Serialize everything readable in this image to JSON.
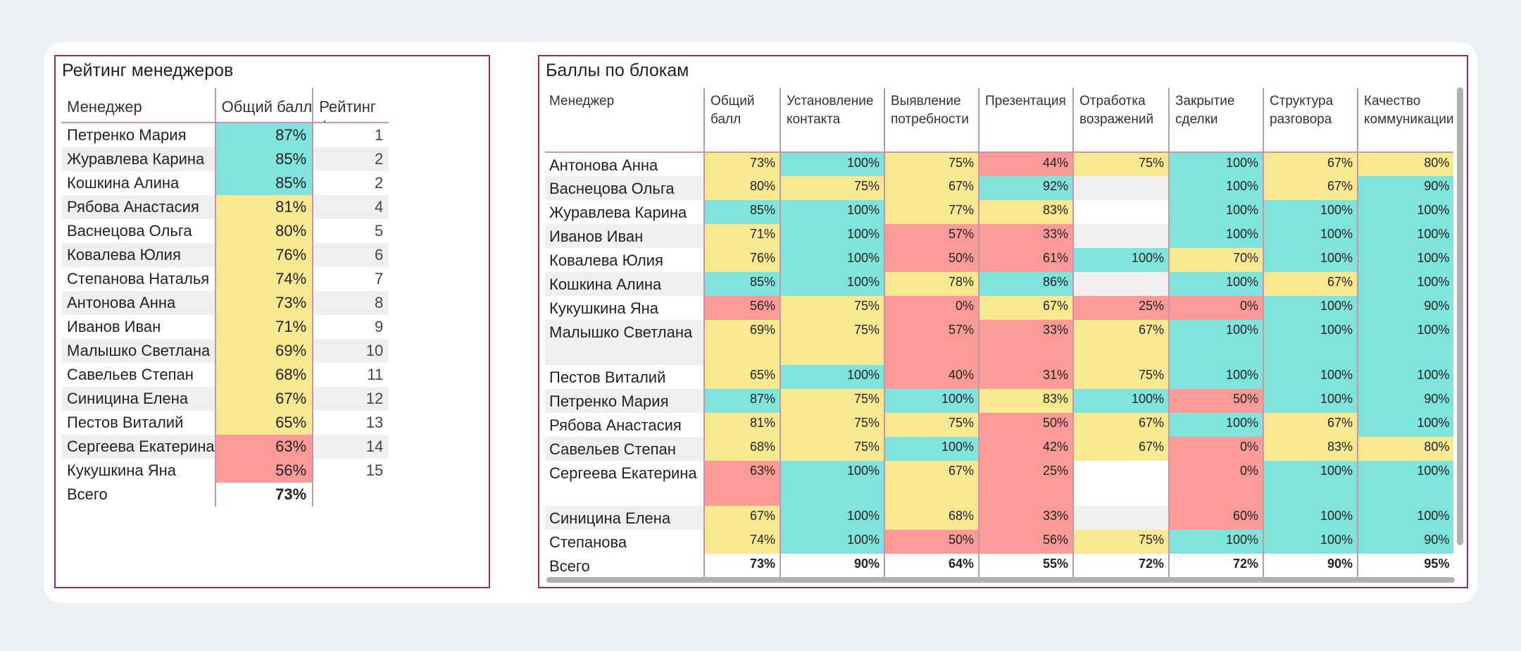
{
  "left": {
    "title": "Рейтинг менеджеров",
    "headers": {
      "manager": "Менеджер",
      "score": "Общий балл",
      "rank": "Рейтинг"
    },
    "rows": [
      {
        "name": "Петренко Мария",
        "score": "87%",
        "rank": "1",
        "color": "g"
      },
      {
        "name": "Журавлева Карина",
        "score": "85%",
        "rank": "2",
        "color": "g"
      },
      {
        "name": "Кошкина Алина",
        "score": "85%",
        "rank": "2",
        "color": "g"
      },
      {
        "name": "Рябова Анастасия",
        "score": "81%",
        "rank": "4",
        "color": "y"
      },
      {
        "name": "Васнецова Ольга",
        "score": "80%",
        "rank": "5",
        "color": "y"
      },
      {
        "name": "Ковалева Юлия",
        "score": "76%",
        "rank": "6",
        "color": "y"
      },
      {
        "name": "Степанова Наталья",
        "score": "74%",
        "rank": "7",
        "color": "y"
      },
      {
        "name": "Антонова Анна",
        "score": "73%",
        "rank": "8",
        "color": "y"
      },
      {
        "name": "Иванов Иван",
        "score": "71%",
        "rank": "9",
        "color": "y"
      },
      {
        "name": "Малышко Светлана",
        "score": "69%",
        "rank": "10",
        "color": "y"
      },
      {
        "name": "Савельев Степан",
        "score": "68%",
        "rank": "11",
        "color": "y"
      },
      {
        "name": "Синицина Елена",
        "score": "67%",
        "rank": "12",
        "color": "y"
      },
      {
        "name": "Пестов Виталий",
        "score": "65%",
        "rank": "13",
        "color": "y"
      },
      {
        "name": "Сергеева Екатерина",
        "score": "63%",
        "rank": "14",
        "color": "r"
      },
      {
        "name": "Кукушкина Яна",
        "score": "56%",
        "rank": "15",
        "color": "r"
      }
    ],
    "total": {
      "label": "Всего",
      "score": "73%"
    }
  },
  "right": {
    "title": "Баллы по блокам",
    "headers": [
      "Менеджер",
      "Общий балл",
      "Установление контакта",
      "Выявление потребности",
      "Презентация",
      "Отработка возражений",
      "Закрытие сделки",
      "Структура разговора",
      "Качество коммуникации"
    ],
    "rows": [
      {
        "name": "Антонова Анна",
        "cells": [
          [
            "73%",
            "y"
          ],
          [
            "100%",
            "g"
          ],
          [
            "75%",
            "y"
          ],
          [
            "44%",
            "r"
          ],
          [
            "75%",
            "y"
          ],
          [
            "100%",
            "g"
          ],
          [
            "67%",
            "y"
          ],
          [
            "80%",
            "y"
          ]
        ]
      },
      {
        "name": "Васнецова Ольга",
        "cells": [
          [
            "80%",
            "y"
          ],
          [
            "75%",
            "y"
          ],
          [
            "67%",
            "y"
          ],
          [
            "92%",
            "g"
          ],
          [
            "",
            "e"
          ],
          [
            "100%",
            "g"
          ],
          [
            "67%",
            "y"
          ],
          [
            "90%",
            "g"
          ]
        ]
      },
      {
        "name": "Журавлева Карина",
        "cells": [
          [
            "85%",
            "g"
          ],
          [
            "100%",
            "g"
          ],
          [
            "77%",
            "y"
          ],
          [
            "83%",
            "y"
          ],
          [
            "",
            "w"
          ],
          [
            "100%",
            "g"
          ],
          [
            "100%",
            "g"
          ],
          [
            "100%",
            "g"
          ]
        ]
      },
      {
        "name": "Иванов Иван",
        "cells": [
          [
            "71%",
            "y"
          ],
          [
            "100%",
            "g"
          ],
          [
            "57%",
            "r"
          ],
          [
            "33%",
            "r"
          ],
          [
            "",
            "e"
          ],
          [
            "100%",
            "g"
          ],
          [
            "100%",
            "g"
          ],
          [
            "100%",
            "g"
          ]
        ]
      },
      {
        "name": "Ковалева Юлия",
        "cells": [
          [
            "76%",
            "y"
          ],
          [
            "100%",
            "g"
          ],
          [
            "50%",
            "r"
          ],
          [
            "61%",
            "r"
          ],
          [
            "100%",
            "g"
          ],
          [
            "70%",
            "y"
          ],
          [
            "100%",
            "g"
          ],
          [
            "100%",
            "g"
          ]
        ]
      },
      {
        "name": "Кошкина Алина",
        "cells": [
          [
            "85%",
            "g"
          ],
          [
            "100%",
            "g"
          ],
          [
            "78%",
            "y"
          ],
          [
            "86%",
            "g"
          ],
          [
            "",
            "e"
          ],
          [
            "100%",
            "g"
          ],
          [
            "67%",
            "y"
          ],
          [
            "100%",
            "g"
          ]
        ]
      },
      {
        "name": "Кукушкина Яна",
        "cells": [
          [
            "56%",
            "r"
          ],
          [
            "75%",
            "y"
          ],
          [
            "0%",
            "r"
          ],
          [
            "67%",
            "y"
          ],
          [
            "25%",
            "r"
          ],
          [
            "0%",
            "r"
          ],
          [
            "100%",
            "g"
          ],
          [
            "90%",
            "g"
          ]
        ]
      },
      {
        "name": "Малышко Светлана",
        "cells": [
          [
            "69%",
            "y"
          ],
          [
            "75%",
            "y"
          ],
          [
            "57%",
            "r"
          ],
          [
            "33%",
            "r"
          ],
          [
            "67%",
            "y"
          ],
          [
            "100%",
            "g"
          ],
          [
            "100%",
            "g"
          ],
          [
            "100%",
            "g"
          ]
        ],
        "tall": true
      },
      {
        "name": "Пестов Виталий",
        "cells": [
          [
            "65%",
            "y"
          ],
          [
            "100%",
            "g"
          ],
          [
            "40%",
            "r"
          ],
          [
            "31%",
            "r"
          ],
          [
            "75%",
            "y"
          ],
          [
            "100%",
            "g"
          ],
          [
            "100%",
            "g"
          ],
          [
            "100%",
            "g"
          ]
        ]
      },
      {
        "name": "Петренко Мария",
        "cells": [
          [
            "87%",
            "g"
          ],
          [
            "75%",
            "y"
          ],
          [
            "100%",
            "g"
          ],
          [
            "83%",
            "y"
          ],
          [
            "100%",
            "g"
          ],
          [
            "50%",
            "r"
          ],
          [
            "100%",
            "g"
          ],
          [
            "90%",
            "g"
          ]
        ]
      },
      {
        "name": "Рябова Анастасия",
        "cells": [
          [
            "81%",
            "y"
          ],
          [
            "75%",
            "y"
          ],
          [
            "75%",
            "y"
          ],
          [
            "50%",
            "r"
          ],
          [
            "67%",
            "y"
          ],
          [
            "100%",
            "g"
          ],
          [
            "67%",
            "y"
          ],
          [
            "100%",
            "g"
          ]
        ]
      },
      {
        "name": "Савельев Степан",
        "cells": [
          [
            "68%",
            "y"
          ],
          [
            "75%",
            "y"
          ],
          [
            "100%",
            "g"
          ],
          [
            "42%",
            "r"
          ],
          [
            "67%",
            "y"
          ],
          [
            "0%",
            "r"
          ],
          [
            "83%",
            "y"
          ],
          [
            "80%",
            "y"
          ]
        ]
      },
      {
        "name": "Сергеева Екатерина",
        "cells": [
          [
            "63%",
            "r"
          ],
          [
            "100%",
            "g"
          ],
          [
            "67%",
            "y"
          ],
          [
            "25%",
            "r"
          ],
          [
            "",
            "w"
          ],
          [
            "0%",
            "r"
          ],
          [
            "100%",
            "g"
          ],
          [
            "100%",
            "g"
          ]
        ],
        "tall": true
      },
      {
        "name": "Синицина Елена",
        "cells": [
          [
            "67%",
            "y"
          ],
          [
            "100%",
            "g"
          ],
          [
            "68%",
            "y"
          ],
          [
            "33%",
            "r"
          ],
          [
            "",
            "e"
          ],
          [
            "60%",
            "r"
          ],
          [
            "100%",
            "g"
          ],
          [
            "100%",
            "g"
          ]
        ]
      },
      {
        "name": "Степанова",
        "cells": [
          [
            "74%",
            "y"
          ],
          [
            "100%",
            "g"
          ],
          [
            "50%",
            "r"
          ],
          [
            "56%",
            "r"
          ],
          [
            "75%",
            "y"
          ],
          [
            "100%",
            "g"
          ],
          [
            "100%",
            "g"
          ],
          [
            "90%",
            "g"
          ]
        ]
      }
    ],
    "total": {
      "label": "Всего",
      "cells": [
        "73%",
        "90%",
        "64%",
        "55%",
        "72%",
        "72%",
        "90%",
        "95%"
      ]
    }
  }
}
